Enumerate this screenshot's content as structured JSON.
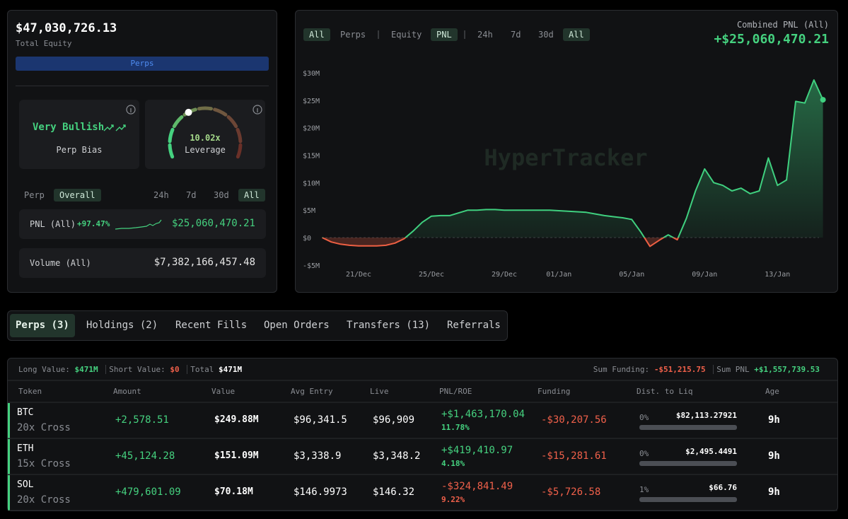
{
  "account": {
    "total_equity": "$47,030,726.13",
    "total_equity_label": "Total Equity",
    "tab": "Perps"
  },
  "bias": {
    "value": "Very Bullish",
    "label": "Perp Bias"
  },
  "leverage": {
    "value": "10.02x",
    "label": "Leverage"
  },
  "stats_filter": {
    "scopes": [
      "Perp",
      "Overall"
    ],
    "ranges": [
      "24h",
      "7d",
      "30d",
      "All"
    ]
  },
  "pnl": {
    "label": "PNL (All)",
    "change": "+97.47%",
    "value": "$25,060,470.21"
  },
  "volume": {
    "label": "Volume (All)",
    "value": "$7,382,166,457.48"
  },
  "chart_toolbar": {
    "markets": [
      "All",
      "Perps"
    ],
    "metrics": [
      "Equity",
      "PNL"
    ],
    "ranges": [
      "24h",
      "7d",
      "30d",
      "All"
    ]
  },
  "combined_pnl": {
    "label": "Combined PNL (All)",
    "value": "+$25,060,470.21"
  },
  "chart_data": {
    "type": "line",
    "watermark": "HyperTracker",
    "color": "#3fd07f",
    "negative_color": "#ee5f43",
    "categories": [
      null,
      null,
      null,
      null,
      "21/Dec",
      null,
      null,
      null,
      null,
      null,
      null,
      null,
      "25/Dec",
      null,
      null,
      null,
      null,
      null,
      null,
      null,
      "29/Dec",
      null,
      null,
      null,
      null,
      null,
      "01/Jan",
      null,
      null,
      null,
      null,
      null,
      null,
      null,
      "05/Jan",
      null,
      null,
      null,
      null,
      null,
      null,
      null,
      "09/Jan",
      null,
      null,
      null,
      null,
      null,
      null,
      null,
      "13/Jan",
      null,
      null,
      null,
      null,
      null
    ],
    "values": [
      0,
      -0.8,
      -1.2,
      -1.4,
      -1.5,
      -1.5,
      -1.5,
      -1.4,
      -1.0,
      -0.2,
      1.2,
      2.8,
      3.9,
      4.0,
      4.0,
      4.5,
      5.0,
      5.0,
      5.1,
      5.1,
      5.0,
      5.0,
      5.0,
      5.0,
      5.0,
      5.0,
      4.9,
      4.8,
      4.7,
      4.6,
      4.3,
      4.0,
      3.8,
      3.6,
      3.3,
      1.0,
      -1.6,
      -0.5,
      0.5,
      -0.4,
      3.5,
      8.5,
      12.5,
      10.0,
      9.5,
      8.5,
      9.0,
      8.0,
      8.5,
      14.5,
      9.5,
      10.5,
      24.8,
      24.5,
      28.7,
      25.1
    ],
    "ylim": [
      -6,
      32
    ],
    "yticks": [
      {
        "value": -5,
        "label": "-$5M"
      },
      {
        "value": 0,
        "label": "$0"
      },
      {
        "value": 5,
        "label": "$5M"
      },
      {
        "value": 10,
        "label": "$10M"
      },
      {
        "value": 15,
        "label": "$15M"
      },
      {
        "value": 20,
        "label": "$20M"
      },
      {
        "value": 25,
        "label": "$25M"
      },
      {
        "value": 30,
        "label": "$30M"
      }
    ],
    "grid": false
  },
  "tabs": [
    "Perps (3)",
    "Holdings (2)",
    "Recent Fills",
    "Open Orders",
    "Transfers (13)",
    "Referrals"
  ],
  "positions": {
    "summary": {
      "long_label": "Long Value:",
      "long_value": "$471M",
      "short_label": "Short Value:",
      "short_value": "$0",
      "total_label": "Total",
      "total_value": "$471M",
      "funding_label": "Sum Funding:",
      "funding_value": "-$51,215.75",
      "pnl_label": "Sum PNL",
      "pnl_value": "+$1,557,739.53"
    },
    "columns": [
      "Token",
      "Amount",
      "Value",
      "Avg Entry",
      "Live",
      "PNL/ROE",
      "Funding",
      "Dist. to Liq",
      "Age"
    ],
    "rows": [
      {
        "token": "BTC",
        "mode": "20x Cross",
        "amount": "+2,578.51",
        "value": "$249.88M",
        "avg_entry": "$96,341.5",
        "live": "$96,909",
        "pnl": "+$1,463,170.04",
        "roe": "11.78%",
        "funding": "-$30,207.56",
        "dist": "0%",
        "liq_price": "$82,113.27921",
        "age": "9h"
      },
      {
        "token": "ETH",
        "mode": "15x Cross",
        "amount": "+45,124.28",
        "value": "$151.09M",
        "avg_entry": "$3,338.9",
        "live": "$3,348.2",
        "pnl": "+$419,410.97",
        "roe": "4.18%",
        "funding": "-$15,281.61",
        "dist": "0%",
        "liq_price": "$2,495.4491",
        "age": "9h"
      },
      {
        "token": "SOL",
        "mode": "20x Cross",
        "amount": "+479,601.09",
        "value": "$70.18M",
        "avg_entry": "$146.9973",
        "live": "$146.32",
        "pnl": "-$324,841.49",
        "roe": "9.22%",
        "funding": "-$5,726.58",
        "dist": "1%",
        "liq_price": "$66.76",
        "age": "9h"
      }
    ]
  }
}
